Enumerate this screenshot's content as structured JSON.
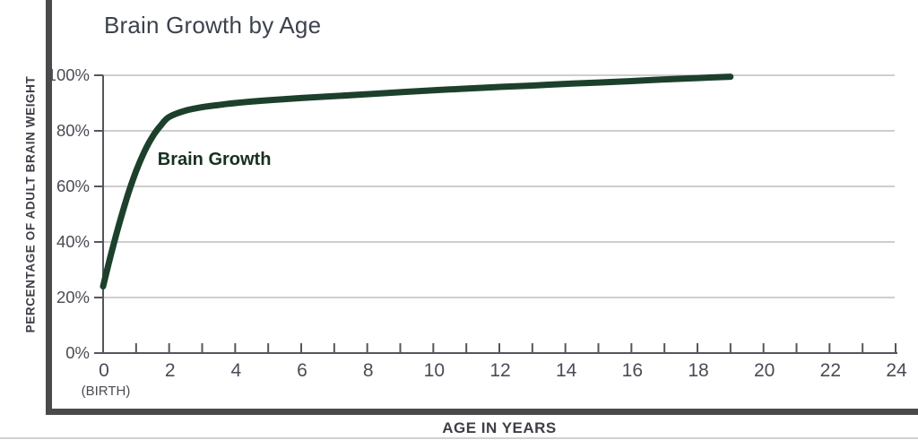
{
  "page": {
    "background": "#ffffff",
    "frame_color": "#4a4a4a",
    "bottom_edge_color": "#ccd2d2"
  },
  "chart_data": {
    "type": "line",
    "title": "Brain Growth by Age",
    "xlabel": "AGE IN YEARS",
    "ylabel": "PERCENTAGE OF ADULT BRAIN WEIGHT",
    "xlim": [
      0,
      24
    ],
    "ylim": [
      0,
      100
    ],
    "grid": "horizontal-only",
    "grid_color": "#b0b0b0",
    "axis_color": "#55555c",
    "tick_label_color": "#4b4b54",
    "x_tick_values": [
      0,
      2,
      4,
      6,
      8,
      10,
      12,
      14,
      16,
      18,
      20,
      22,
      24
    ],
    "x_tick_labels": [
      "0",
      "2",
      "4",
      "6",
      "8",
      "10",
      "12",
      "14",
      "16",
      "18",
      "20",
      "22",
      "24"
    ],
    "x_minor_tick_step": 1,
    "x_zero_note": "(BIRTH)",
    "y_tick_values": [
      0,
      20,
      40,
      60,
      80,
      100
    ],
    "y_tick_labels": [
      "0%",
      "20%",
      "40%",
      "60%",
      "80%",
      "100%"
    ],
    "series": [
      {
        "name": "Brain Growth",
        "color": "#1c402c",
        "points": [
          [
            0,
            24
          ],
          [
            0.25,
            36
          ],
          [
            0.5,
            47
          ],
          [
            0.75,
            57
          ],
          [
            1,
            65.5
          ],
          [
            1.25,
            72.5
          ],
          [
            1.5,
            78
          ],
          [
            1.75,
            82
          ],
          [
            2,
            85
          ],
          [
            2.5,
            87.3
          ],
          [
            3,
            88.5
          ],
          [
            3.5,
            89.3
          ],
          [
            4,
            90
          ],
          [
            5,
            91
          ],
          [
            6,
            91.8
          ],
          [
            7,
            92.5
          ],
          [
            8,
            93.2
          ],
          [
            9,
            93.9
          ],
          [
            10,
            94.6
          ],
          [
            11,
            95.2
          ],
          [
            12,
            95.8
          ],
          [
            13,
            96.3
          ],
          [
            14,
            96.9
          ],
          [
            15,
            97.4
          ],
          [
            16,
            97.9
          ],
          [
            17,
            98.5
          ],
          [
            18,
            99
          ],
          [
            19,
            99.5
          ]
        ]
      }
    ],
    "annotation": {
      "text": "Brain Growth",
      "x": 1.65,
      "y": 70,
      "color": "#17301f"
    }
  }
}
